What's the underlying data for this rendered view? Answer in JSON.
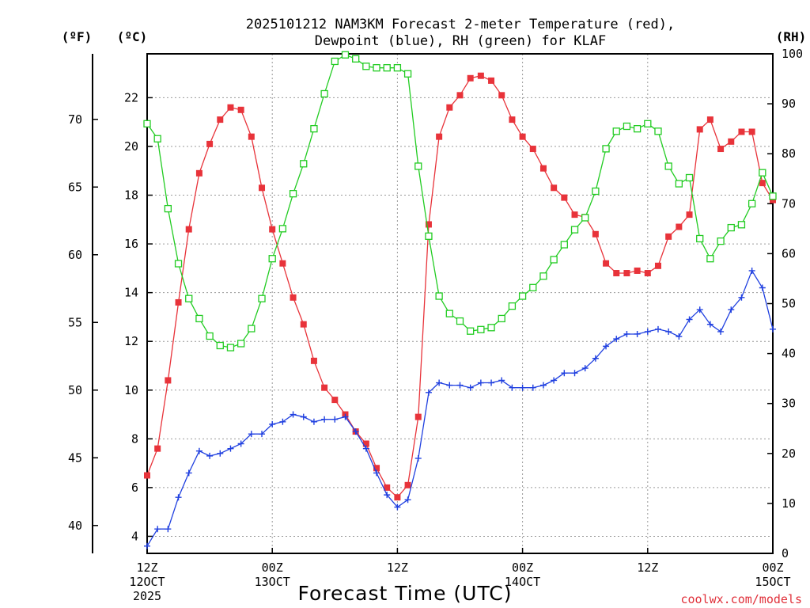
{
  "title_line1": "2025101212 NAM3KM Forecast 2-meter Temperature (red),",
  "title_line2": "Dewpoint (blue), RH (green) for KLAF",
  "axis_units": {
    "fahrenheit": "(ºF)",
    "celsius": "(ºC)",
    "rh": "(RH)"
  },
  "xlabel": "Forecast Time (UTC)",
  "credit": "coolwx.com/models",
  "x_ticks": [
    {
      "hour": 0,
      "line1": "12Z",
      "line2": "12OCT",
      "line3": "2025"
    },
    {
      "hour": 12,
      "line1": "00Z",
      "line2": "13OCT",
      "line3": ""
    },
    {
      "hour": 24,
      "line1": "12Z",
      "line2": "",
      "line3": ""
    },
    {
      "hour": 36,
      "line1": "00Z",
      "line2": "14OCT",
      "line3": ""
    },
    {
      "hour": 48,
      "line1": "12Z",
      "line2": "",
      "line3": ""
    },
    {
      "hour": 60,
      "line1": "00Z",
      "line2": "15OCT",
      "line3": ""
    }
  ],
  "chart_data": {
    "type": "line",
    "title": "2025101212 NAM3KM Forecast 2-meter Temperature (red), Dewpoint (blue), RH (green) for KLAF",
    "xlabel": "Forecast Time (UTC)",
    "x_unit": "forecast hour",
    "xlim": [
      0,
      60
    ],
    "y_left_celsius": {
      "label": "(ºC)",
      "ylim": [
        3.3,
        23.8
      ],
      "ticks": [
        4,
        6,
        8,
        10,
        12,
        14,
        16,
        18,
        20,
        22
      ]
    },
    "y_left_fahrenheit": {
      "label": "(ºF)",
      "ticks": [
        40,
        45,
        50,
        55,
        60,
        65,
        70
      ]
    },
    "y_right_rh": {
      "label": "(RH)",
      "ylim": [
        0,
        100
      ],
      "ticks": [
        0,
        10,
        20,
        30,
        40,
        50,
        60,
        70,
        80,
        90,
        100
      ]
    },
    "x": [
      0,
      1,
      2,
      3,
      4,
      5,
      6,
      7,
      8,
      9,
      10,
      11,
      12,
      13,
      14,
      15,
      16,
      17,
      18,
      19,
      20,
      21,
      22,
      23,
      24,
      25,
      26,
      27,
      28,
      29,
      30,
      31,
      32,
      33,
      34,
      35,
      36,
      37,
      38,
      39,
      40,
      41,
      42,
      43,
      44,
      45,
      46,
      47,
      48,
      49,
      50,
      51,
      52,
      53,
      54,
      55,
      56,
      57,
      58,
      59,
      60
    ],
    "series": [
      {
        "name": "Temperature",
        "unit": "C",
        "color": "#e8333a",
        "marker": "filled-square",
        "values": [
          6.5,
          7.6,
          10.4,
          13.6,
          16.6,
          18.9,
          20.1,
          21.1,
          21.6,
          21.5,
          20.4,
          18.3,
          16.6,
          15.2,
          13.8,
          12.7,
          11.2,
          10.1,
          9.6,
          9.0,
          8.3,
          7.8,
          6.8,
          6.0,
          5.6,
          6.1,
          8.9,
          16.8,
          20.4,
          21.6,
          22.1,
          22.8,
          22.9,
          22.7,
          22.1,
          21.1,
          20.4,
          19.9,
          19.1,
          18.3,
          17.9,
          17.2,
          17.1,
          16.4,
          15.2,
          14.8,
          14.8,
          14.9,
          14.8,
          15.1,
          16.3,
          16.7,
          17.2,
          20.7,
          21.1,
          19.9,
          20.2,
          20.6,
          20.6,
          18.5,
          17.8
        ]
      },
      {
        "name": "Dewpoint",
        "unit": "C",
        "color": "#2040e0",
        "marker": "plus",
        "values": [
          3.6,
          4.3,
          4.3,
          5.6,
          6.6,
          7.5,
          7.3,
          7.4,
          7.6,
          7.8,
          8.2,
          8.2,
          8.6,
          8.7,
          9.0,
          8.9,
          8.7,
          8.8,
          8.8,
          8.9,
          8.3,
          7.6,
          6.6,
          5.7,
          5.2,
          5.5,
          7.2,
          9.9,
          10.3,
          10.2,
          10.2,
          10.1,
          10.3,
          10.3,
          10.4,
          10.1,
          10.1,
          10.1,
          10.2,
          10.4,
          10.7,
          10.7,
          10.9,
          11.3,
          11.8,
          12.1,
          12.3,
          12.3,
          12.4,
          12.5,
          12.4,
          12.2,
          12.9,
          13.3,
          12.7,
          12.4,
          13.3,
          13.8,
          14.9,
          14.2,
          12.5
        ]
      },
      {
        "name": "RH",
        "unit": "%",
        "color": "#22cc22",
        "marker": "open-square",
        "values": [
          86,
          83,
          69,
          58,
          51,
          47,
          43.5,
          41.6,
          41.2,
          42,
          45,
          51,
          59,
          65,
          72,
          78,
          85,
          92,
          98.5,
          99.8,
          99,
          97.5,
          97.2,
          97.2,
          97.2,
          96,
          77.5,
          63.5,
          51.5,
          48,
          46.5,
          44.5,
          44.8,
          45.2,
          47,
          49.5,
          51.5,
          53.2,
          55.5,
          58.8,
          61.8,
          64.8,
          67.2,
          72.5,
          81,
          84.5,
          85.5,
          85,
          86,
          84.5,
          77.5,
          74,
          75.2,
          63,
          59,
          62.5,
          65.2,
          65.8,
          70,
          76.2,
          71.5
        ]
      }
    ]
  }
}
